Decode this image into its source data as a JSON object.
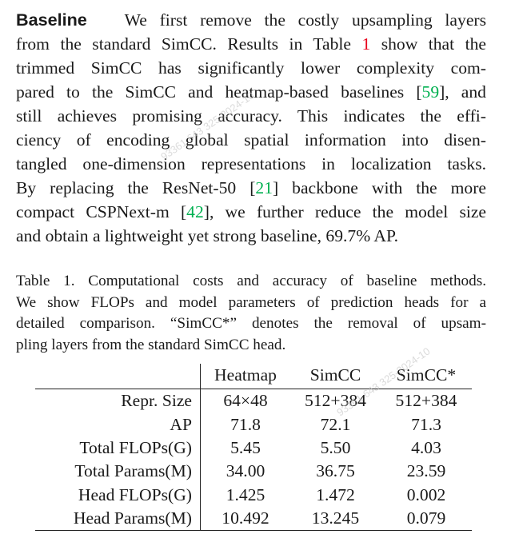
{
  "paragraph": {
    "heading": "Baseline",
    "lines": [
      {
        "before": "We first remove the costly upsampling layers",
        "cite": "",
        "cite_color": "",
        "after": ""
      },
      {
        "before": "from the standard SimCC. Results in Table ",
        "cite": "1",
        "cite_color": "red",
        "after": " show that the"
      },
      {
        "before": "trimmed SimCC has significantly lower complexity com-",
        "cite": "",
        "cite_color": "",
        "after": ""
      },
      {
        "before": "pared to the SimCC and heatmap-based baselines [",
        "cite": "59",
        "cite_color": "green",
        "after": "], and"
      },
      {
        "before": "still achieves promising accuracy.  This indicates the effi-",
        "cite": "",
        "cite_color": "",
        "after": ""
      },
      {
        "before": "ciency of encoding global spatial information into disen-",
        "cite": "",
        "cite_color": "",
        "after": ""
      },
      {
        "before": "tangled one-dimension representations in localization tasks.",
        "cite": "",
        "cite_color": "",
        "after": ""
      },
      {
        "before": "By replacing the ResNet-50 [",
        "cite": "21",
        "cite_color": "green",
        "after": "] backbone with the more"
      },
      {
        "before": "compact CSPNext-m [",
        "cite": "42",
        "cite_color": "green",
        "after": "], we further reduce the model size"
      },
      {
        "before": "and obtain a lightweight yet strong baseline, 69.7% AP.",
        "cite": "",
        "cite_color": "",
        "after": ""
      }
    ]
  },
  "caption": {
    "lines": [
      "Table 1. Computational costs and accuracy of baseline methods.",
      "We show FLOPs and model parameters of prediction heads for a",
      "detailed comparison.  “SimCC*” denotes the removal of upsam-",
      "pling layers from the standard SimCC head."
    ]
  },
  "table": {
    "headers": [
      "",
      "Heatmap",
      "SimCC",
      "SimCC*"
    ],
    "rows": [
      [
        "Repr. Size",
        "64×48",
        "512+384",
        "512+384"
      ],
      [
        "AP",
        "71.8",
        "72.1",
        "71.3"
      ],
      [
        "Total FLOPs(G)",
        "5.45",
        "5.50",
        "4.03"
      ],
      [
        "Total Params(M)",
        "34.00",
        "36.75",
        "23.59"
      ],
      [
        "Head FLOPs(G)",
        "1.425",
        "1.472",
        "0.002"
      ],
      [
        "Head Params(M)",
        "10.492",
        "13.245",
        "0.079"
      ]
    ]
  },
  "colors": {
    "citation_table_ref": "#e8001c",
    "citation_bib": "#00b050"
  }
}
